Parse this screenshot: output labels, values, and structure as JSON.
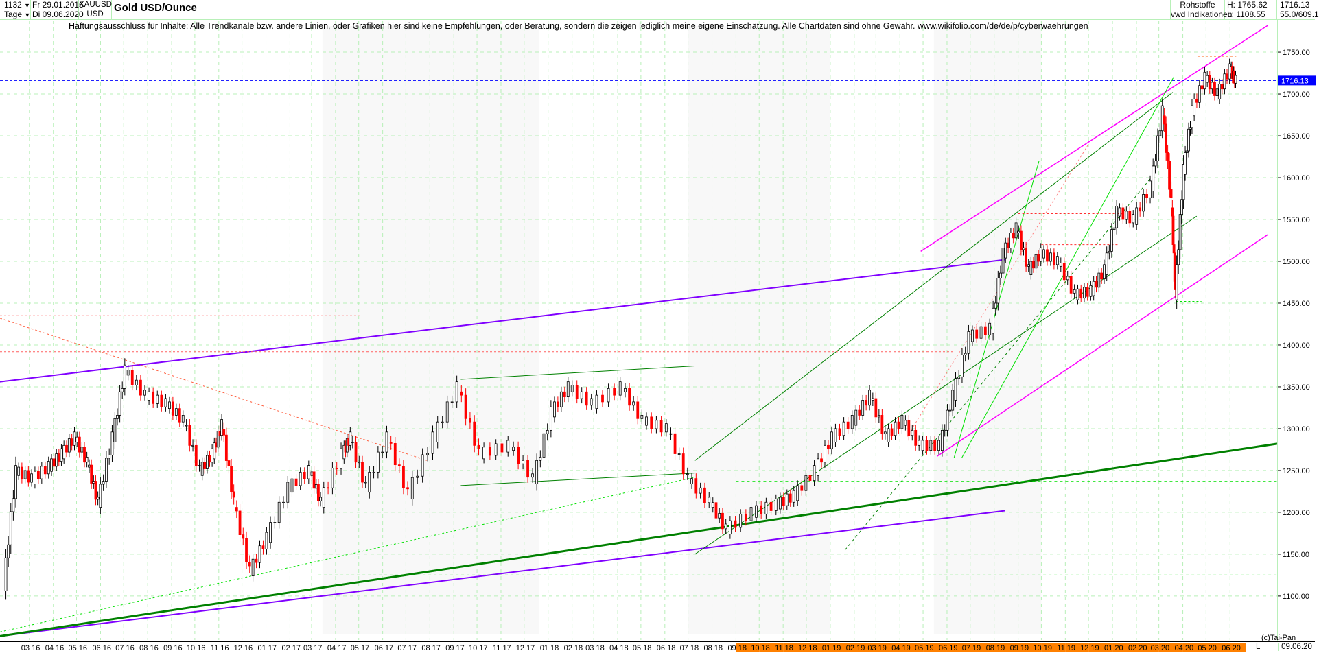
{
  "header": {
    "bars": "1132",
    "bars_dropdown": "▼",
    "from_date": "Fr 29.01.2016",
    "period": "Tage",
    "period_dropdown": "▼",
    "to_date": "Di 09.06.2020",
    "symbol": "XAUUSD",
    "currency": "USD",
    "title": "Gold USD/Ounce",
    "category": "Rohstoffe",
    "source": "vwd Indikationen",
    "high": "H: 1765.62",
    "low": "L: 1108.55",
    "last": "1716.13",
    "scale_info": "55.0/609.1"
  },
  "disclaimer": "Haftungsausschluss für Inhalte: Alle Trendkanäle bzw. andere Linien, oder Grafiken hier sind keine Empfehlungen, oder Beratung, sondern die zeigen lediglich meine eigene Einschätzung. Alle Chartdaten sind ohne Gewähr.  www.wikifolio.com/de/de/p/cyberwaehrungen",
  "footer": {
    "copyright": "(c)Tai-Pan",
    "scale_mode": "L",
    "current_date": "09.06.20"
  },
  "colors": {
    "up": "#000000",
    "down": "#ff0000",
    "grid": "#b8f0b8",
    "last_price": "#0000ff",
    "highlight": "#ff8000"
  },
  "chart_data": {
    "type": "candlestick",
    "title": "Gold USD/Ounce",
    "xlim": [
      "2016-01-23",
      "2020-08-01"
    ],
    "ylim": [
      1054,
      1773
    ],
    "yticks": [
      1100,
      1150,
      1200,
      1250,
      1300,
      1350,
      1400,
      1450,
      1500,
      1550,
      1600,
      1650,
      1700,
      1750
    ],
    "ytick_labels": [
      "1100.00",
      "1150.00",
      "1200.00",
      "1250.00",
      "1300.00",
      "1350.00",
      "1400.00",
      "1450.00",
      "1500.00",
      "1550.00",
      "1600.00",
      "1650.00",
      "1700.00",
      "1750.00"
    ],
    "xtick_labels": [
      "03 16",
      "04 16",
      "05 16",
      "06 16",
      "07 16",
      "08 16",
      "09 16",
      "10 16",
      "11 16",
      "12 16",
      "01 17",
      "02 17",
      "03 17",
      "04 17",
      "05 17",
      "06 17",
      "07 17",
      "08 17",
      "09 17",
      "10 17",
      "11 17",
      "12 17",
      "01 18",
      "02 18",
      "03 18",
      "04 18",
      "05 18",
      "06 18",
      "07 18",
      "08 18",
      "09 18",
      "10 18",
      "11 18",
      "12 18",
      "01 19",
      "02 19",
      "03 19",
      "04 19",
      "05 19",
      "06 19",
      "07 19",
      "08 19",
      "09 19",
      "10 19",
      "11 19",
      "12 19",
      "01 20",
      "02 20",
      "03 20",
      "04 20",
      "05 20",
      "06 20"
    ],
    "xtick_highlight_from": "09 18",
    "grid": true,
    "last_price": 1716.13,
    "last_price_label": "1716.13",
    "closes": [
      [
        "2016-01-29",
        1112
      ],
      [
        "2016-02-14",
        1250
      ],
      [
        "2016-03-06",
        1240
      ],
      [
        "2016-03-28",
        1255
      ],
      [
        "2016-04-13",
        1270
      ],
      [
        "2016-04-30",
        1290
      ],
      [
        "2016-05-16",
        1260
      ],
      [
        "2016-05-30",
        1212
      ],
      [
        "2016-06-18",
        1290
      ],
      [
        "2016-07-04",
        1370
      ],
      [
        "2016-07-31",
        1340
      ],
      [
        "2016-08-27",
        1330
      ],
      [
        "2016-09-18",
        1310
      ],
      [
        "2016-10-09",
        1250
      ],
      [
        "2016-10-25",
        1270
      ],
      [
        "2016-11-06",
        1305
      ],
      [
        "2016-11-22",
        1212
      ],
      [
        "2016-12-13",
        1130
      ],
      [
        "2017-01-04",
        1170
      ],
      [
        "2017-02-01",
        1230
      ],
      [
        "2017-02-28",
        1250
      ],
      [
        "2017-03-14",
        1212
      ],
      [
        "2017-04-11",
        1270
      ],
      [
        "2017-04-21",
        1290
      ],
      [
        "2017-05-12",
        1230
      ],
      [
        "2017-06-09",
        1290
      ],
      [
        "2017-07-06",
        1222
      ],
      [
        "2017-08-08",
        1290
      ],
      [
        "2017-09-08",
        1350
      ],
      [
        "2017-10-06",
        1270
      ],
      [
        "2017-11-14",
        1280
      ],
      [
        "2017-12-15",
        1240
      ],
      [
        "2018-01-07",
        1320
      ],
      [
        "2018-01-29",
        1350
      ],
      [
        "2018-03-01",
        1330
      ],
      [
        "2018-04-08",
        1350
      ],
      [
        "2018-05-05",
        1310
      ],
      [
        "2018-06-06",
        1300
      ],
      [
        "2018-07-03",
        1240
      ],
      [
        "2018-07-31",
        1212
      ],
      [
        "2018-08-21",
        1180
      ],
      [
        "2018-09-24",
        1200
      ],
      [
        "2018-10-26",
        1210
      ],
      [
        "2018-11-17",
        1220
      ],
      [
        "2018-12-14",
        1250
      ],
      [
        "2019-01-05",
        1290
      ],
      [
        "2019-02-01",
        1310
      ],
      [
        "2019-02-23",
        1340
      ],
      [
        "2019-03-15",
        1290
      ],
      [
        "2019-04-06",
        1310
      ],
      [
        "2019-04-28",
        1280
      ],
      [
        "2019-05-24",
        1280
      ],
      [
        "2019-06-10",
        1340
      ],
      [
        "2019-07-01",
        1410
      ],
      [
        "2019-07-29",
        1420
      ],
      [
        "2019-08-14",
        1510
      ],
      [
        "2019-08-31",
        1540
      ],
      [
        "2019-09-16",
        1490
      ],
      [
        "2019-10-02",
        1510
      ],
      [
        "2019-10-24",
        1500
      ],
      [
        "2019-11-15",
        1460
      ],
      [
        "2019-12-06",
        1465
      ],
      [
        "2019-12-23",
        1490
      ],
      [
        "2020-01-08",
        1560
      ],
      [
        "2020-01-30",
        1550
      ],
      [
        "2020-02-21",
        1590
      ],
      [
        "2020-03-07",
        1680
      ],
      [
        "2020-03-18",
        1570
      ],
      [
        "2020-03-23",
        1460
      ],
      [
        "2020-04-03",
        1610
      ],
      [
        "2020-04-14",
        1680
      ],
      [
        "2020-05-01",
        1720
      ],
      [
        "2020-05-17",
        1700
      ],
      [
        "2020-06-02",
        1730
      ],
      [
        "2020-06-09",
        1716.13
      ]
    ],
    "trendlines": [
      {
        "from": [
          "2016-01-23",
          1356
        ],
        "to": [
          "2019-08-15",
          1502
        ],
        "color": "#8000ff",
        "width": 2
      },
      {
        "from": [
          "2016-01-23",
          1052
        ],
        "to": [
          "2019-08-15",
          1202
        ],
        "color": "#8000ff",
        "width": 2
      },
      {
        "from": [
          "2016-01-23",
          1052
        ],
        "to": [
          "2020-08-01",
          1282
        ],
        "color": "#008000",
        "width": 3
      },
      {
        "from": [
          "2019-04-28",
          1512
        ],
        "to": [
          "2020-07-20",
          1782
        ],
        "color": "#ff00ff",
        "width": 1.5
      },
      {
        "from": [
          "2019-05-19",
          1267
        ],
        "to": [
          "2020-07-20",
          1532
        ],
        "color": "#ff00ff",
        "width": 1.5
      },
      {
        "from": [
          "2017-09-10",
          1359
        ],
        "to": [
          "2018-07-10",
          1375
        ],
        "color": "#008000",
        "width": 1
      },
      {
        "from": [
          "2017-09-10",
          1232
        ],
        "to": [
          "2018-07-10",
          1247
        ],
        "color": "#008000",
        "width": 1
      },
      {
        "from": [
          "2018-07-10",
          1262
        ],
        "to": [
          "2020-03-19",
          1702
        ],
        "color": "#008000",
        "width": 1
      },
      {
        "from": [
          "2018-07-10",
          1150
        ],
        "to": [
          "2020-04-19",
          1554
        ],
        "color": "#008000",
        "width": 1
      },
      {
        "from": [
          "2019-06-10",
          1265
        ],
        "to": [
          "2019-09-28",
          1620
        ],
        "color": "#00e000",
        "width": 1
      },
      {
        "from": [
          "2019-06-20",
          1265
        ],
        "to": [
          "2020-03-20",
          1720
        ],
        "color": "#00e000",
        "width": 1
      },
      {
        "from": [
          "2016-01-23",
          1432
        ],
        "to": [
          "2017-07-28",
          1262
        ],
        "color": "#ff6040",
        "width": 1,
        "dash": "3,3"
      },
      {
        "from": [
          "2016-01-23",
          1057
        ],
        "to": [
          "2018-07-10",
          1242
        ],
        "color": "#00e000",
        "width": 1,
        "dash": "3,3"
      },
      {
        "from": [
          "2019-01-20",
          1155
        ],
        "to": [
          "2020-02-20",
          1600
        ],
        "color": "#008000",
        "width": 1,
        "dash": "4,4"
      },
      {
        "from": [
          "2019-04-10",
          1290
        ],
        "to": [
          "2019-12-01",
          1640
        ],
        "color": "#ff8080",
        "width": 1,
        "dash": "3,3"
      },
      {
        "from": [
          "2016-01-23",
          1435
        ],
        "to": [
          "2017-05-02",
          1435
        ],
        "color": "#ff6060",
        "width": 1,
        "dash": "3,3"
      },
      {
        "from": [
          "2016-01-23",
          1392
        ],
        "to": [
          "2019-06-10",
          1392
        ],
        "color": "#ff6060",
        "width": 1,
        "dash": "3,3"
      },
      {
        "from": [
          "2016-07-04",
          1375
        ],
        "to": [
          "2019-06-10",
          1375
        ],
        "color": "#ff8040",
        "width": 1,
        "dash": "3,3"
      },
      {
        "from": [
          "2017-03-10",
          1125
        ],
        "to": [
          "2020-08-01",
          1125
        ],
        "color": "#00e000",
        "width": 1,
        "dash": "4,4"
      },
      {
        "from": [
          "2018-09-01",
          1237
        ],
        "to": [
          "2020-08-01",
          1237
        ],
        "color": "#00e000",
        "width": 1,
        "dash": "4,4"
      },
      {
        "from": [
          "2019-09-01",
          1557
        ],
        "to": [
          "2020-01-15",
          1557
        ],
        "color": "#ff3030",
        "width": 1,
        "dash": "3,3"
      },
      {
        "from": [
          "2019-10-01",
          1520
        ],
        "to": [
          "2020-01-08",
          1520
        ],
        "color": "#ff3030",
        "width": 1,
        "dash": "3,3"
      },
      {
        "from": [
          "2020-03-23",
          1452
        ],
        "to": [
          "2020-04-25",
          1452
        ],
        "color": "#00e000",
        "width": 1,
        "dash": "3,3"
      },
      {
        "from": [
          "2020-04-20",
          1745
        ],
        "to": [
          "2020-06-09",
          1745
        ],
        "color": "#ff8040",
        "width": 1,
        "dash": "3,3"
      }
    ]
  }
}
